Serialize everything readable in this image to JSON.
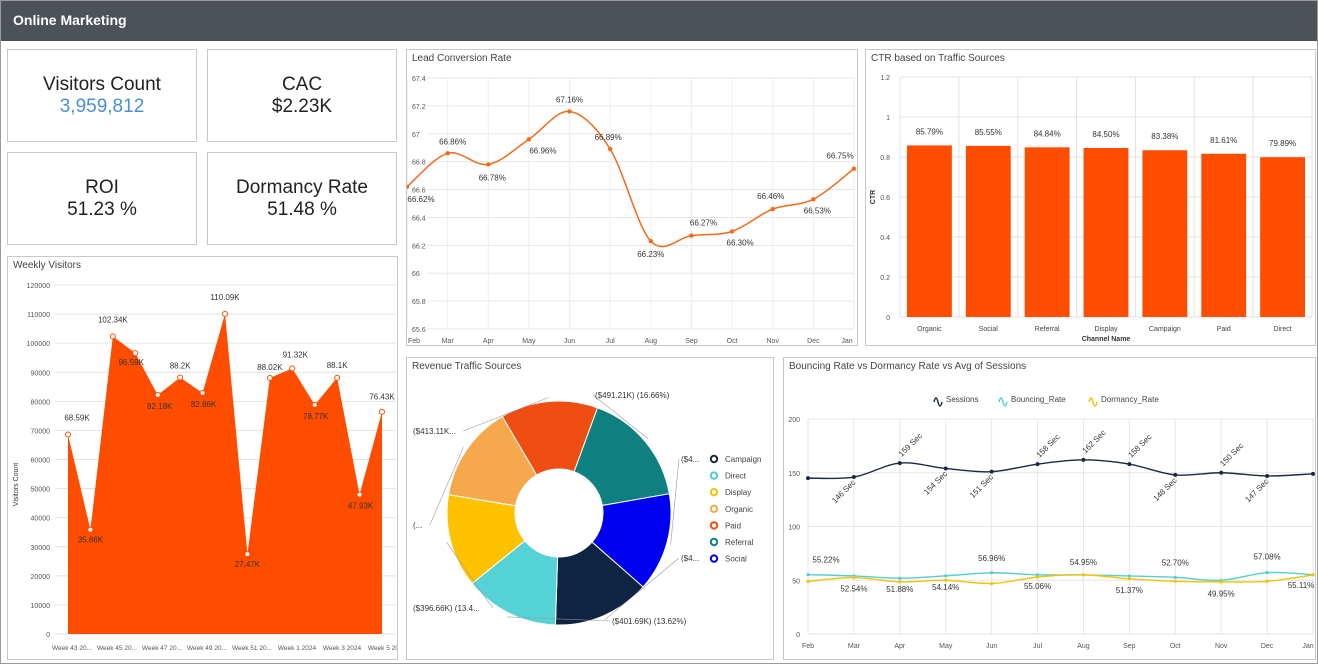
{
  "app": {
    "title": "Online Marketing"
  },
  "kpis": [
    {
      "label": "Visitors Count",
      "value": "3,959,812"
    },
    {
      "label": "CAC",
      "value": "$2.23K"
    },
    {
      "label": "ROI",
      "value": "51.23 %"
    },
    {
      "label": "Dormancy Rate",
      "value": "51.48 %"
    }
  ],
  "colors": {
    "orange": "#ff4d00",
    "lineOrange": "#f26a1b",
    "header": "#4d5258",
    "navy": "#1b2a44",
    "teal": "#55cdd6",
    "yellow": "#f2c400"
  },
  "chart_data": [
    {
      "type": "line",
      "title": "Lead Conversion Rate",
      "categories": [
        "Feb",
        "Mar",
        "Apr",
        "May",
        "Jun",
        "Jul",
        "Aug",
        "Sep",
        "Oct",
        "Nov",
        "Dec",
        "Jan"
      ],
      "values": [
        66.62,
        66.86,
        66.78,
        66.96,
        67.16,
        66.89,
        66.23,
        66.27,
        66.3,
        66.46,
        66.53,
        66.75
      ],
      "data_labels": [
        "66.62%",
        "66.86%",
        "66.78%",
        "66.96%",
        "67.16%",
        "66.89%",
        "66.23%",
        "66.27%",
        "66.30%",
        "66.46%",
        "66.53%",
        "66.75%"
      ],
      "y_ticks": [
        "65.6",
        "65.8",
        "66",
        "66.2",
        "66.4",
        "66.6",
        "66.8",
        "67",
        "67.2",
        "67.4"
      ],
      "ylim": [
        65.6,
        67.4
      ]
    },
    {
      "type": "bar",
      "title": "CTR based on Traffic Sources",
      "xlabel": "Channel Name",
      "ylabel": "CTR",
      "categories": [
        "Organic",
        "Social",
        "Referral",
        "Display",
        "Campaign",
        "Paid",
        "Direct"
      ],
      "values": [
        0.8579,
        0.8555,
        0.8484,
        0.845,
        0.8338,
        0.8161,
        0.7989
      ],
      "data_labels": [
        "85.79%",
        "85.55%",
        "84.84%",
        "84.50%",
        "83.38%",
        "81.61%",
        "79.89%"
      ],
      "y_ticks": [
        "0",
        "0.2",
        "0.4",
        "0.6",
        "0.8",
        "1",
        "1.2"
      ],
      "ylim": [
        0,
        1.2
      ]
    },
    {
      "type": "area",
      "title": "Weekly Visitors",
      "ylabel": "Visitors Count",
      "values": [
        68590,
        35860,
        102340,
        96590,
        82180,
        88200,
        82860,
        110090,
        27470,
        88020,
        91320,
        78770,
        88100,
        47930,
        76430
      ],
      "data_labels": [
        "68.59K",
        "35.86K",
        "102.34K",
        "96.59K",
        "82.18K",
        "88.2K",
        "82.86K",
        "110.09K",
        "27.47K",
        "88.02K",
        "91.32K",
        "78.77K",
        "88.1K",
        "47.93K",
        "76.43K"
      ],
      "x_ticks": [
        "Week 43 20...",
        "Week 45 20...",
        "Week 47 20...",
        "Week 49 20...",
        "Week 51 20...",
        "Week 1 2024",
        "Week 3 2024",
        "Week 5 2024"
      ],
      "y_ticks": [
        "0",
        "10000",
        "20000",
        "30000",
        "40000",
        "50000",
        "60000",
        "70000",
        "80000",
        "90000",
        "100000",
        "110000",
        "120000"
      ],
      "ylim": [
        0,
        120000
      ]
    },
    {
      "type": "pie",
      "title": "Revenue Traffic Sources",
      "slices": [
        {
          "name": "Campaign",
          "value": 16.66,
          "color": "#0f8080",
          "label": "($491.21K) (16.66%)"
        },
        {
          "name": "Direct",
          "value": 14.2,
          "color": "#0000f0",
          "label": "($4..."
        },
        {
          "name": "Display",
          "value": 14.0,
          "color": "#0f2342",
          "label": "($4..."
        },
        {
          "name": "Organic",
          "value": 13.62,
          "color": "#55d2d6",
          "label": "($401.69K) (13.62%)"
        },
        {
          "name": "Paid",
          "value": 13.45,
          "color": "#ffc200",
          "label": "($396.66K) (13.4..."
        },
        {
          "name": "Referral",
          "value": 13.9,
          "color": "#f6a84c",
          "label": "(..."
        },
        {
          "name": "Social",
          "value": 14.0,
          "color": "#f04d12",
          "label": "($413.11K..."
        }
      ],
      "legend": [
        "Campaign",
        "Direct",
        "Display",
        "Organic",
        "Paid",
        "Referral",
        "Social"
      ],
      "legend_colors": [
        "#1b2a44",
        "#55cdd6",
        "#f2c400",
        "#f6a84c",
        "#f04d12",
        "#0f8080",
        "#0000f0"
      ]
    },
    {
      "type": "line",
      "title": "Bouncing Rate vs Dormancy Rate vs Avg of Sessions",
      "categories": [
        "Feb",
        "Mar",
        "Apr",
        "May",
        "Jun",
        "Jul",
        "Aug",
        "Sep",
        "Oct",
        "Nov",
        "Dec",
        "Jan"
      ],
      "legend": [
        "Sessions",
        "Bouncing_Rate",
        "Dormancy_Rate"
      ],
      "y_ticks": [
        "0",
        "50",
        "100",
        "150",
        "200"
      ],
      "ylim": [
        0,
        200
      ],
      "series": [
        {
          "name": "Sessions",
          "color": "#1b2a44",
          "values": [
            145,
            146,
            159,
            154,
            151,
            158,
            162,
            158,
            148,
            150,
            147,
            149
          ],
          "labels": [
            "",
            "146 Sec",
            "159 Sec",
            "154 Sec",
            "151 Sec",
            "158 Sec",
            "162 Sec",
            "158 Sec",
            "148 Sec",
            "150 Sec",
            "147 Sec",
            ""
          ]
        },
        {
          "name": "Bouncing_Rate",
          "color": "#55cdd6",
          "values": [
            55.22,
            54.0,
            51.88,
            54.14,
            56.96,
            55.06,
            54.95,
            54.0,
            52.7,
            49.95,
            57.08,
            55.11
          ],
          "labels": [
            "55.22%",
            "",
            "51.88%",
            "54.14%",
            "56.96%",
            "55.06%",
            "54.95%",
            "",
            "52.70%",
            "49.95%",
            "57.08%",
            "55.11%"
          ]
        },
        {
          "name": "Dormancy_Rate",
          "color": "#f2c400",
          "values": [
            49.0,
            52.54,
            48.5,
            50.0,
            47.0,
            53.0,
            55.0,
            51.37,
            49.0,
            48.5,
            49.0,
            55.0
          ],
          "labels": [
            "",
            "52.54%",
            "",
            "",
            "",
            "",
            "",
            "51.37%",
            "",
            "",
            "",
            ""
          ]
        }
      ]
    }
  ]
}
